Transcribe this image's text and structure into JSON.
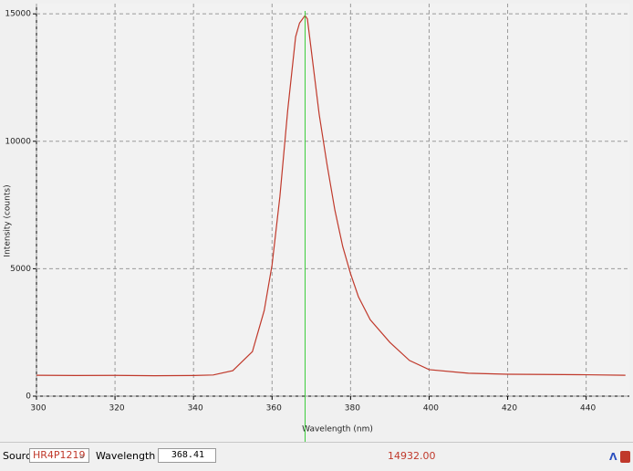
{
  "chart_data": {
    "type": "line",
    "xlabel": "Wavelength (nm)",
    "ylabel": "Intensity (counts)",
    "x": [
      300,
      310,
      320,
      330,
      340,
      345,
      350,
      355,
      358,
      360,
      362,
      364,
      366,
      367,
      368.4,
      369,
      370,
      372,
      374,
      376,
      378,
      380,
      382,
      385,
      390,
      395,
      400,
      410,
      420,
      430,
      440,
      450
    ],
    "values": [
      820,
      810,
      815,
      800,
      810,
      830,
      1000,
      1750,
      3360,
      5150,
      7840,
      11240,
      14100,
      14640,
      14932,
      14800,
      13560,
      11060,
      9090,
      7300,
      5870,
      4800,
      3900,
      3000,
      2110,
      1400,
      1040,
      900,
      860,
      850,
      840,
      820
    ],
    "color": "#c0392b",
    "xlim": [
      300,
      451
    ],
    "ylim": [
      0,
      15400
    ],
    "xticks": [
      300,
      320,
      340,
      360,
      380,
      400,
      420,
      440
    ],
    "yticks": [
      0,
      5000,
      10000,
      15000
    ],
    "grid": true,
    "cursor_color": "#3ccc3c"
  },
  "status_bar": {
    "source_label": "Source:",
    "source": "HR4P1219",
    "wavelength_label": "Wavelength (nm):",
    "wavelength": 368.41,
    "intensity": "14932.00"
  }
}
